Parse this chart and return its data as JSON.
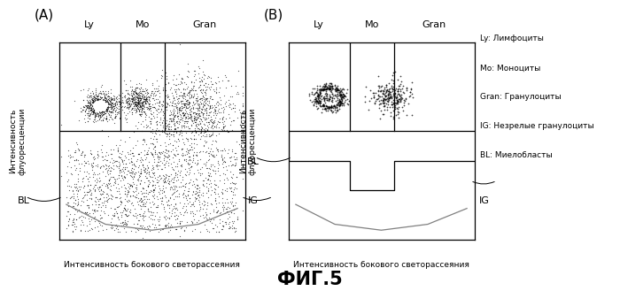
{
  "title": "ФИГ.5",
  "panel_A_label": "(А)",
  "panel_B_label": "(В)",
  "xlabel": "Интенсивность бокового светорассеяния",
  "ylabel": "Интенсивность\nфлуоресценции",
  "BL_label": "BL",
  "IG_label": "IG",
  "legend_lines": [
    "Ly: Лимфоциты",
    "Mo: Моноциты",
    "Gran: Гранулоциты",
    "IG: Незрелые гранулоциты",
    "BL: Миелобласты"
  ],
  "top_labels": [
    "Ly",
    "Mo",
    "Gran"
  ],
  "bg_color": "#ffffff"
}
